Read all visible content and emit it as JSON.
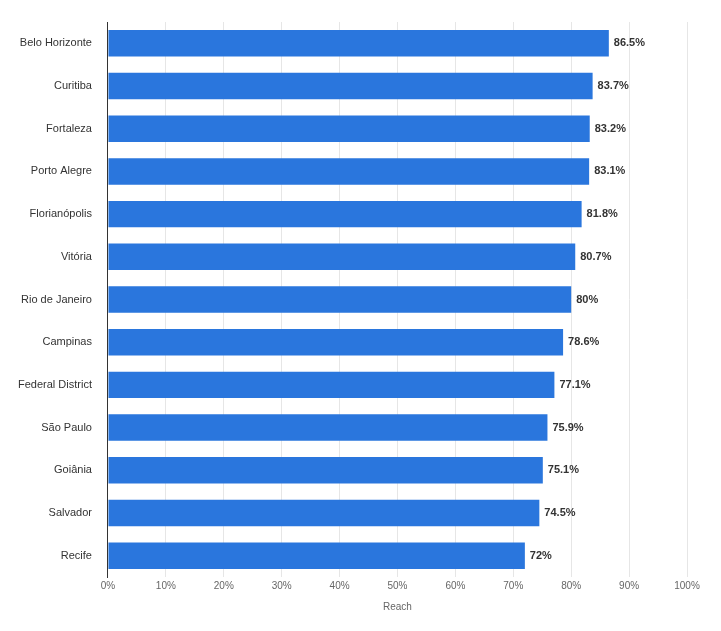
{
  "chart_data": {
    "type": "bar",
    "orientation": "horizontal",
    "categories": [
      "Belo Horizonte",
      "Curitiba",
      "Fortaleza",
      "Porto Alegre",
      "Florianópolis",
      "Vitória",
      "Rio de Janeiro",
      "Campinas",
      "Federal District",
      "São Paulo",
      "Goiânia",
      "Salvador",
      "Recife"
    ],
    "values": [
      86.5,
      83.7,
      83.2,
      83.1,
      81.8,
      80.7,
      80,
      78.6,
      77.1,
      75.9,
      75.1,
      74.5,
      72
    ],
    "value_labels": [
      "86.5%",
      "83.7%",
      "83.2%",
      "83.1%",
      "81.8%",
      "80.7%",
      "80%",
      "78.6%",
      "77.1%",
      "75.9%",
      "75.1%",
      "74.5%",
      "72%"
    ],
    "color": "#2a76dd",
    "x_label": "Reach",
    "xlim": [
      0,
      100
    ],
    "xticks": [
      {
        "value": 0,
        "label": "0%"
      },
      {
        "value": 10,
        "label": "10%"
      },
      {
        "value": 20,
        "label": "20%"
      },
      {
        "value": 30,
        "label": "30%"
      },
      {
        "value": 40,
        "label": "40%"
      },
      {
        "value": 50,
        "label": "50%"
      },
      {
        "value": 60,
        "label": "60%"
      },
      {
        "value": 70,
        "label": "70%"
      },
      {
        "value": 80,
        "label": "80%"
      },
      {
        "value": 90,
        "label": "90%"
      },
      {
        "value": 100,
        "label": "100%"
      }
    ],
    "grid": true,
    "data_labels": true
  }
}
